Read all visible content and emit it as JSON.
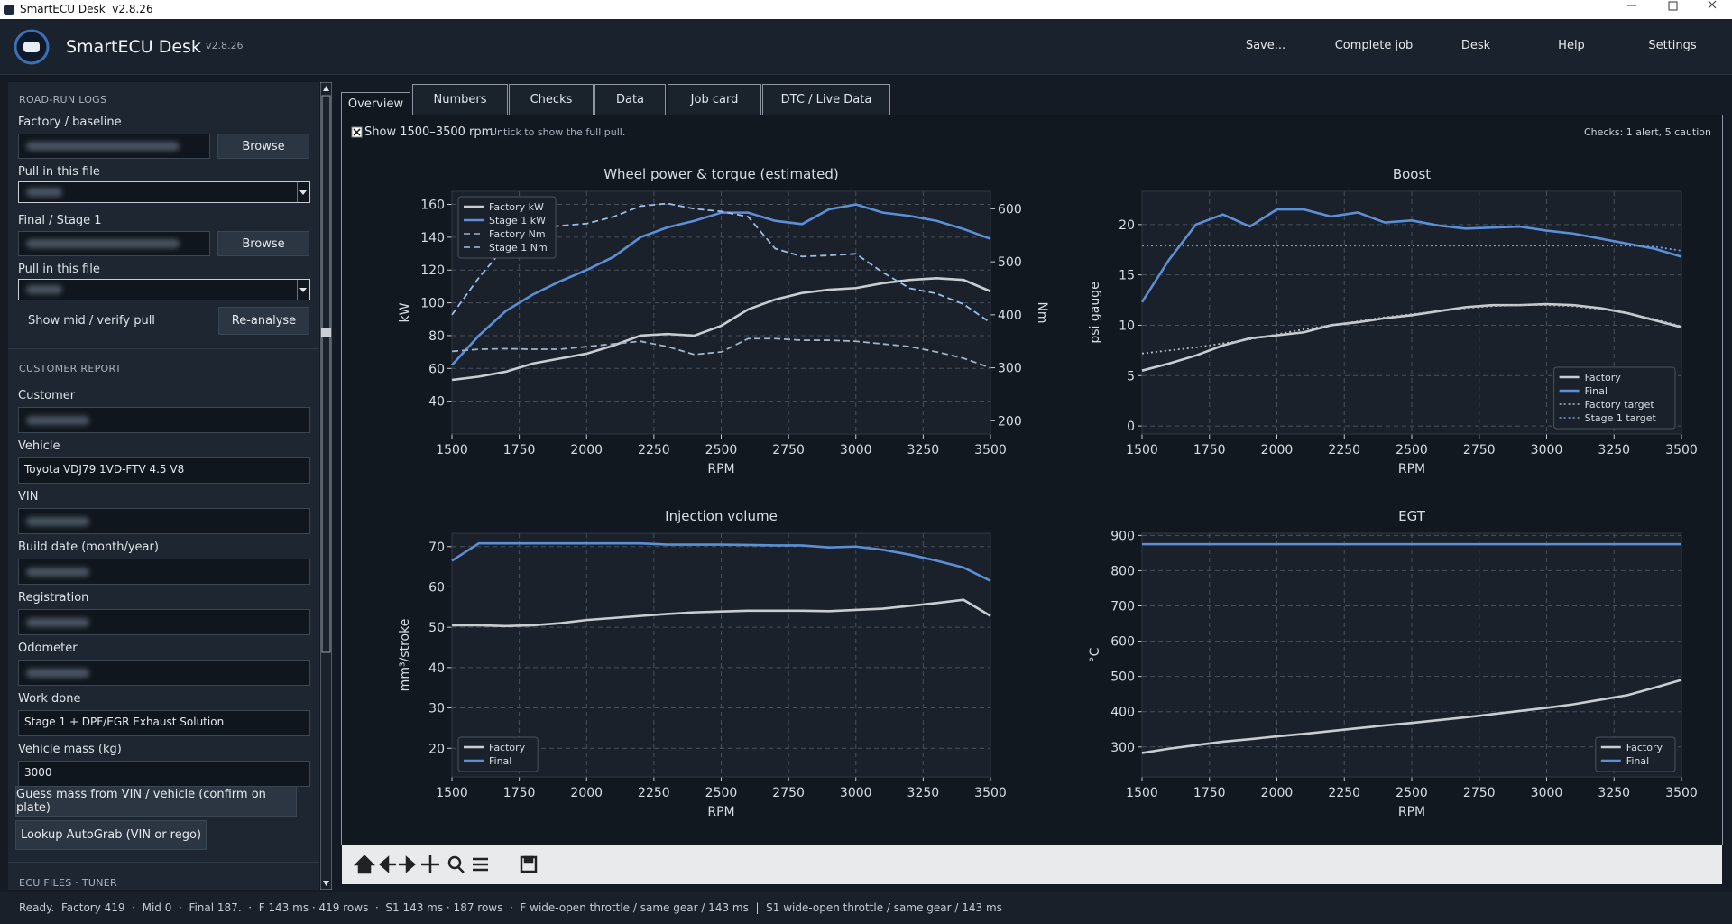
{
  "window": {
    "title": "SmartECU Desk  v2.8.26"
  },
  "header": {
    "app_name": "SmartECU Desk",
    "version": "v2.8.26",
    "menu": [
      "Save...",
      "Complete job",
      "Desk",
      "Help",
      "Settings"
    ]
  },
  "road_run_logs": {
    "heading": "ROAD-RUN LOGS",
    "files": [
      {
        "label": "Factory / baseline",
        "button": "Browse",
        "pull_label": "Pull in this file"
      },
      {
        "label": "Final / Stage 1",
        "button": "Browse",
        "pull_label": "Pull in this file"
      }
    ],
    "show_mid": "Show mid / verify pull",
    "reanalyse": "Re-analyse"
  },
  "customer_report": {
    "heading": "CUSTOMER REPORT",
    "fields": [
      {
        "label": "Customer"
      },
      {
        "label": "Vehicle",
        "value": "Toyota VDJ79 1VD-FTV 4.5 V8"
      },
      {
        "label": "VIN"
      },
      {
        "label": "Build date (month/year)"
      },
      {
        "label": "Registration"
      },
      {
        "label": "Odometer"
      },
      {
        "label": "Work done",
        "value": "Stage 1 + DPF/EGR Exhaust Solution"
      },
      {
        "label": "Vehicle mass (kg)",
        "value": "3000"
      }
    ],
    "buttons": [
      "Guess mass from VIN / vehicle (confirm on plate)",
      "Lookup AutoGrab (VIN or rego)"
    ]
  },
  "next_section": "ECU FILES · TUNER",
  "tabs": [
    "Overview",
    "Numbers",
    "Checks",
    "Data",
    "Job card",
    "DTC / Live Data"
  ],
  "panel": {
    "checkbox": "Show 1500–3500 rpm",
    "hint": "Untick to show the full pull.",
    "checks": "Checks: 1 alert, 5 caution"
  },
  "status": "Ready.  Factory 419  ·  Mid 0  ·  Final 187.  ·  F 143 ms · 419 rows  ·  S1 143 ms · 187 rows  ·  F wide-open throttle / same gear / 143 ms  |  S1 wide-open throttle / same gear / 143 ms",
  "chart_data": [
    {
      "type": "line",
      "title": "Wheel power & torque (estimated)",
      "xlabel": "RPM",
      "ylabel": "kW",
      "y2label": "Nm",
      "x": [
        1500,
        1600,
        1700,
        1800,
        1900,
        2000,
        2100,
        2200,
        2300,
        2400,
        2500,
        2600,
        2700,
        2800,
        2900,
        3000,
        3100,
        3200,
        3300,
        3400,
        3500
      ],
      "xlim": [
        1500,
        3500
      ],
      "xticks": [
        1500,
        1750,
        2000,
        2250,
        2500,
        2750,
        3000,
        3250,
        3500
      ],
      "ylim": [
        20,
        168
      ],
      "yticks": [
        40,
        60,
        80,
        100,
        120,
        140,
        160
      ],
      "y2lim": [
        175,
        633
      ],
      "y2ticks": [
        200,
        300,
        400,
        500,
        600
      ],
      "grid": true,
      "legend": "upper left",
      "series": [
        {
          "name": "Factory kW",
          "color": "#c9ccd1",
          "style": "solid",
          "values": [
            53,
            55,
            58,
            63,
            66,
            69,
            74,
            80,
            81,
            80,
            86,
            96,
            102,
            106,
            108,
            109,
            112,
            114,
            115,
            114,
            107
          ]
        },
        {
          "name": "Stage 1 kW",
          "color": "#5b8fd6",
          "style": "solid",
          "values": [
            62,
            80,
            95,
            105,
            113,
            120,
            128,
            140,
            146,
            150,
            155,
            155,
            150,
            148,
            157,
            160,
            155,
            153,
            150,
            145,
            139
          ]
        },
        {
          "name": "Factory Nm",
          "color": "#9fb3c8",
          "style": "dashed",
          "axis": "y2",
          "values": [
            331,
            335,
            336,
            335,
            335,
            340,
            345,
            350,
            340,
            325,
            330,
            355,
            355,
            352,
            352,
            350,
            345,
            340,
            330,
            318,
            300
          ]
        },
        {
          "name": "Stage 1 Nm",
          "color": "#9cbde6",
          "style": "dashed",
          "axis": "y2",
          "values": [
            400,
            470,
            530,
            560,
            568,
            572,
            585,
            605,
            610,
            600,
            595,
            585,
            525,
            510,
            512,
            515,
            480,
            450,
            440,
            420,
            385
          ]
        }
      ]
    },
    {
      "type": "line",
      "title": "Boost",
      "xlabel": "RPM",
      "ylabel": "psi gauge",
      "x": [
        1500,
        1600,
        1700,
        1800,
        1900,
        2000,
        2100,
        2200,
        2300,
        2400,
        2500,
        2600,
        2700,
        2800,
        2900,
        3000,
        3100,
        3200,
        3300,
        3400,
        3500
      ],
      "xlim": [
        1500,
        3500
      ],
      "xticks": [
        1500,
        1750,
        2000,
        2250,
        2500,
        2750,
        3000,
        3250,
        3500
      ],
      "ylim": [
        -0.8,
        23.3
      ],
      "yticks": [
        0,
        5,
        10,
        15,
        20
      ],
      "grid": true,
      "legend": "lower right",
      "series": [
        {
          "name": "Factory",
          "color": "#c9ccd1",
          "style": "solid",
          "values": [
            5.5,
            6.2,
            7,
            8,
            8.7,
            9,
            9.3,
            10,
            10.3,
            10.7,
            11,
            11.4,
            11.8,
            12,
            12,
            12.1,
            12,
            11.7,
            11.2,
            10.5,
            9.8
          ]
        },
        {
          "name": "Final",
          "color": "#5b8fd6",
          "style": "solid",
          "values": [
            12.3,
            16.5,
            20,
            21,
            19.8,
            21.5,
            21.5,
            20.8,
            21.2,
            20.2,
            20.4,
            19.9,
            19.6,
            19.7,
            19.8,
            19.4,
            19.1,
            18.6,
            18.1,
            17.6,
            16.8
          ]
        },
        {
          "name": "Factory target",
          "color": "#b8bcc2",
          "style": "dotted",
          "values": [
            7.2,
            7.5,
            7.8,
            8.2,
            8.6,
            9.1,
            9.6,
            10,
            10.4,
            10.8,
            11.1,
            11.4,
            11.7,
            11.9,
            12,
            12,
            11.9,
            11.6,
            11.2,
            10.6,
            9.9
          ]
        },
        {
          "name": "Stage 1 target",
          "color": "#6f9be0",
          "style": "dotted",
          "values": [
            17.9,
            17.9,
            17.9,
            17.9,
            17.9,
            17.9,
            17.9,
            17.9,
            17.9,
            17.9,
            17.9,
            17.9,
            17.9,
            17.9,
            17.9,
            17.9,
            17.9,
            17.9,
            17.9,
            17.8,
            17.4
          ]
        }
      ]
    },
    {
      "type": "line",
      "title": "Injection volume",
      "xlabel": "RPM",
      "ylabel": "mm³/stroke",
      "x": [
        1500,
        1600,
        1700,
        1800,
        1900,
        2000,
        2100,
        2200,
        2300,
        2400,
        2500,
        2600,
        2700,
        2800,
        2900,
        3000,
        3100,
        3200,
        3300,
        3400,
        3500
      ],
      "xlim": [
        1500,
        3500
      ],
      "xticks": [
        1500,
        1750,
        2000,
        2250,
        2500,
        2750,
        3000,
        3250,
        3500
      ],
      "ylim": [
        12.9,
        73.3
      ],
      "yticks": [
        20,
        30,
        40,
        50,
        60,
        70
      ],
      "grid": true,
      "legend": "lower left",
      "series": [
        {
          "name": "Factory",
          "color": "#c9ccd1",
          "style": "solid",
          "values": [
            50.5,
            50.5,
            50.3,
            50.5,
            51,
            51.8,
            52.3,
            52.8,
            53.3,
            53.7,
            53.9,
            54.1,
            54.1,
            54.1,
            54,
            54.3,
            54.6,
            55.3,
            56,
            56.8,
            52.8
          ]
        },
        {
          "name": "Final",
          "color": "#5b8fd6",
          "style": "solid",
          "values": [
            66.5,
            70.8,
            70.8,
            70.8,
            70.8,
            70.8,
            70.8,
            70.8,
            70.5,
            70.5,
            70.5,
            70.4,
            70.3,
            70.3,
            69.8,
            70,
            69.2,
            68,
            66.5,
            64.8,
            61.5
          ]
        }
      ]
    },
    {
      "type": "line",
      "title": "EGT",
      "xlabel": "RPM",
      "ylabel": "°C",
      "x": [
        1500,
        1600,
        1700,
        1800,
        1900,
        2000,
        2100,
        2200,
        2300,
        2400,
        2500,
        2600,
        2700,
        2800,
        2900,
        3000,
        3100,
        3200,
        3300,
        3400,
        3500
      ],
      "xlim": [
        1500,
        3500
      ],
      "xticks": [
        1500,
        1750,
        2000,
        2250,
        2500,
        2750,
        3000,
        3250,
        3500
      ],
      "ylim": [
        215,
        906
      ],
      "yticks": [
        300,
        400,
        500,
        600,
        700,
        800,
        900
      ],
      "grid": true,
      "legend": "lower right",
      "series": [
        {
          "name": "Factory",
          "color": "#c9ccd1",
          "style": "solid",
          "values": [
            283,
            295,
            305,
            315,
            322,
            330,
            337,
            345,
            353,
            361,
            368,
            376,
            384,
            393,
            402,
            411,
            421,
            434,
            447,
            468,
            490
          ]
        },
        {
          "name": "Final",
          "color": "#5b8fd6",
          "style": "solid",
          "values": [
            875,
            875,
            875,
            875,
            875,
            875,
            875,
            875,
            875,
            875,
            875,
            875,
            875,
            875,
            875,
            875,
            875,
            875,
            875,
            875,
            875
          ]
        }
      ]
    }
  ]
}
